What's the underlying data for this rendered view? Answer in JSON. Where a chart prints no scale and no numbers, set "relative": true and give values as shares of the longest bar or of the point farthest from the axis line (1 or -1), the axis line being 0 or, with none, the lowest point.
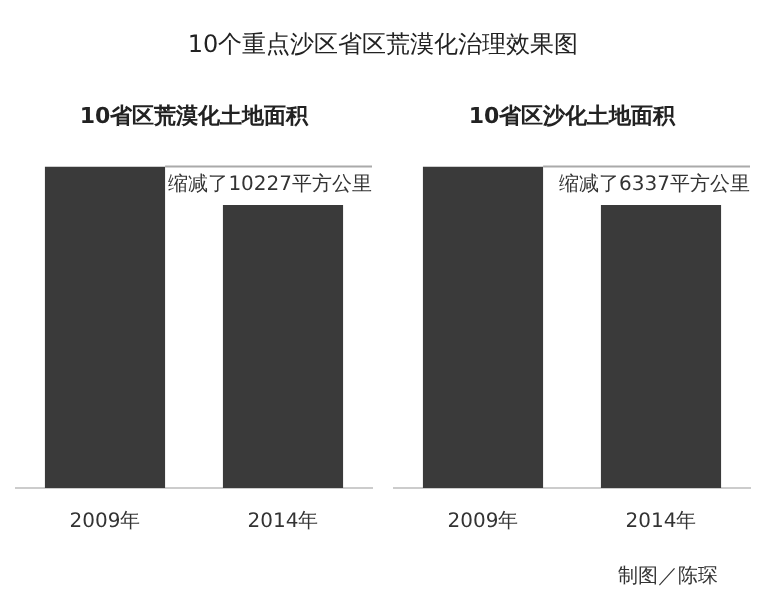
{
  "chart_data": [
    {
      "type": "other",
      "title": "10个重点沙区省区荒漠化治理效果图",
      "annotations": [
        "制图／陈琛"
      ]
    },
    {
      "type": "bar",
      "title": "10省区荒漠化土地面积",
      "categories": [
        "2009年",
        "2014年"
      ],
      "values": [
        1,
        0.88
      ],
      "color": "#3a3a3a",
      "relative": true,
      "ref_lines": [
        {
          "axis": "y",
          "value": 1,
          "label": "缩减了10227平方公里"
        }
      ]
    },
    {
      "type": "bar",
      "title": "10省区沙化土地面积",
      "categories": [
        "2009年",
        "2014年"
      ],
      "values": [
        1,
        0.88
      ],
      "color": "#3a3a3a",
      "relative": true,
      "ref_lines": [
        {
          "axis": "y",
          "value": 1,
          "label": "缩减了6337平方公里"
        }
      ]
    }
  ]
}
